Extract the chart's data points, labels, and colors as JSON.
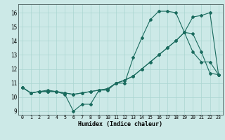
{
  "xlabel": "Humidex (Indice chaleur)",
  "bg_color": "#cce9e7",
  "grid_color": "#aad5d1",
  "line_color": "#1a6b5e",
  "xlim_min": -0.5,
  "xlim_max": 23.5,
  "ylim_min": 8.75,
  "ylim_max": 16.6,
  "xticks": [
    0,
    1,
    2,
    3,
    4,
    5,
    6,
    7,
    8,
    9,
    10,
    11,
    12,
    13,
    14,
    15,
    16,
    17,
    18,
    19,
    20,
    21,
    22,
    23
  ],
  "yticks": [
    9,
    10,
    11,
    12,
    13,
    14,
    15,
    16
  ],
  "line1_x": [
    0,
    1,
    2,
    3,
    4,
    5,
    6,
    7,
    8,
    9,
    10,
    11,
    12,
    13,
    14,
    15,
    16,
    17,
    18,
    19,
    20,
    21,
    22,
    23
  ],
  "line1_y": [
    10.7,
    10.3,
    10.4,
    10.5,
    10.4,
    10.2,
    9.0,
    9.5,
    9.5,
    10.5,
    10.5,
    11.0,
    11.0,
    12.8,
    14.2,
    15.5,
    16.1,
    16.1,
    16.0,
    14.6,
    13.2,
    12.5,
    12.5,
    11.6
  ],
  "line2_x": [
    0,
    1,
    2,
    3,
    4,
    5,
    6,
    7,
    8,
    9,
    10,
    11,
    12,
    13,
    14,
    15,
    16,
    17,
    18,
    19,
    20,
    21,
    22,
    23
  ],
  "line2_y": [
    10.7,
    10.3,
    10.4,
    10.4,
    10.4,
    10.3,
    10.2,
    10.3,
    10.4,
    10.5,
    10.6,
    11.0,
    11.2,
    11.5,
    12.0,
    12.5,
    13.0,
    13.5,
    14.0,
    14.6,
    15.7,
    15.8,
    16.0,
    11.6
  ],
  "line3_x": [
    0,
    1,
    2,
    3,
    4,
    5,
    6,
    7,
    8,
    9,
    10,
    11,
    12,
    13,
    14,
    15,
    16,
    17,
    18,
    19,
    20,
    21,
    22,
    23
  ],
  "line3_y": [
    10.7,
    10.3,
    10.4,
    10.4,
    10.4,
    10.3,
    10.2,
    10.3,
    10.4,
    10.5,
    10.6,
    11.0,
    11.2,
    11.5,
    12.0,
    12.5,
    13.0,
    13.5,
    14.0,
    14.6,
    14.5,
    13.2,
    11.7,
    11.6
  ]
}
